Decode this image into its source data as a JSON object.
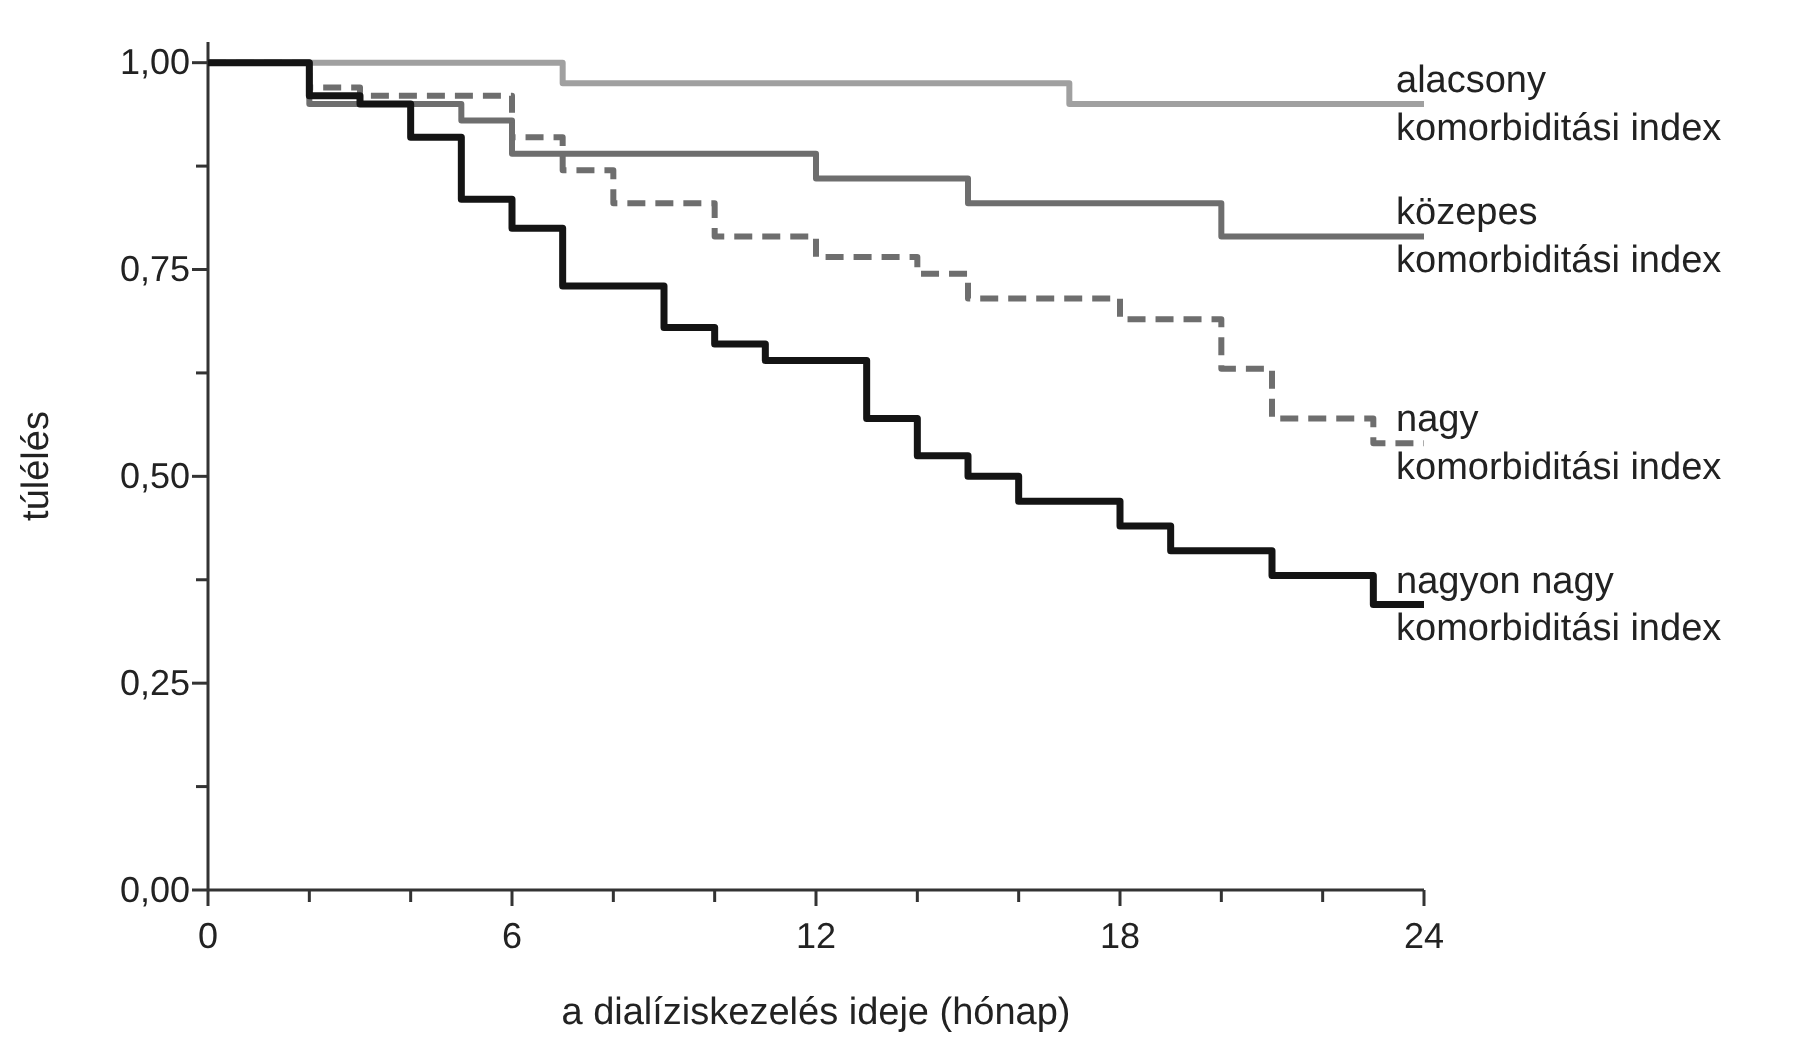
{
  "chart_data": {
    "type": "step",
    "xlabel": "a dialíziskezelés ideje (hónap)",
    "ylabel": "túlélés",
    "xlim": [
      0,
      24
    ],
    "xticks": [
      0,
      {
        "value": 2,
        "label": null
      },
      {
        "value": 4,
        "label": null
      },
      6,
      {
        "value": 8,
        "label": null
      },
      {
        "value": 10,
        "label": null
      },
      12,
      {
        "value": 14,
        "label": null
      },
      {
        "value": 16,
        "label": null
      },
      18,
      {
        "value": 20,
        "label": null
      },
      {
        "value": 22,
        "label": null
      },
      24
    ],
    "ylim": [
      0,
      1.025
    ],
    "yticks": [
      {
        "value": 0,
        "label": "0,00"
      },
      {
        "value": 0.125,
        "label": null
      },
      {
        "value": 0.25,
        "label": "0,25"
      },
      {
        "value": 0.375,
        "label": null
      },
      {
        "value": 0.5,
        "label": "0,50"
      },
      {
        "value": 0.625,
        "label": null
      },
      {
        "value": 0.75,
        "label": "0,75"
      },
      {
        "value": 0.875,
        "label": null
      },
      {
        "value": 1,
        "label": "1,00"
      }
    ],
    "grid": false,
    "legend": false,
    "series": [
      {
        "name": "alacsony komorbiditási index",
        "color": "#a0a0a0",
        "line_style": "solid",
        "x": [
          0,
          7,
          17,
          24
        ],
        "values": [
          1,
          0.975,
          0.95,
          0.95
        ]
      },
      {
        "name": "közepes komorbiditási index",
        "color": "#6e6e6e",
        "line_style": "solid",
        "x": [
          0,
          2,
          5,
          6,
          12,
          15,
          20,
          24
        ],
        "values": [
          1,
          0.95,
          0.93,
          0.89,
          0.86,
          0.83,
          0.79,
          0.79
        ]
      },
      {
        "name": "nagy komorbiditási index",
        "color": "#6e6e6e",
        "line_style": "dashed",
        "x": [
          0,
          2,
          3,
          6,
          7,
          8,
          10,
          12,
          14,
          15,
          18,
          20,
          21,
          23,
          24
        ],
        "values": [
          1,
          0.97,
          0.96,
          0.91,
          0.87,
          0.83,
          0.79,
          0.765,
          0.745,
          0.715,
          0.69,
          0.63,
          0.57,
          0.54,
          0.54
        ]
      },
      {
        "name": "nagyon nagy komorbiditási index",
        "color": "#141414",
        "line_style": "solid",
        "x": [
          0,
          2,
          3,
          4,
          5,
          6,
          7,
          9,
          10,
          11,
          13,
          14,
          15,
          16,
          18,
          19,
          21,
          23,
          24
        ],
        "values": [
          1,
          0.96,
          0.95,
          0.91,
          0.835,
          0.8,
          0.73,
          0.68,
          0.66,
          0.64,
          0.57,
          0.525,
          0.5,
          0.47,
          0.44,
          0.41,
          0.38,
          0.345,
          0.345
        ]
      }
    ]
  }
}
